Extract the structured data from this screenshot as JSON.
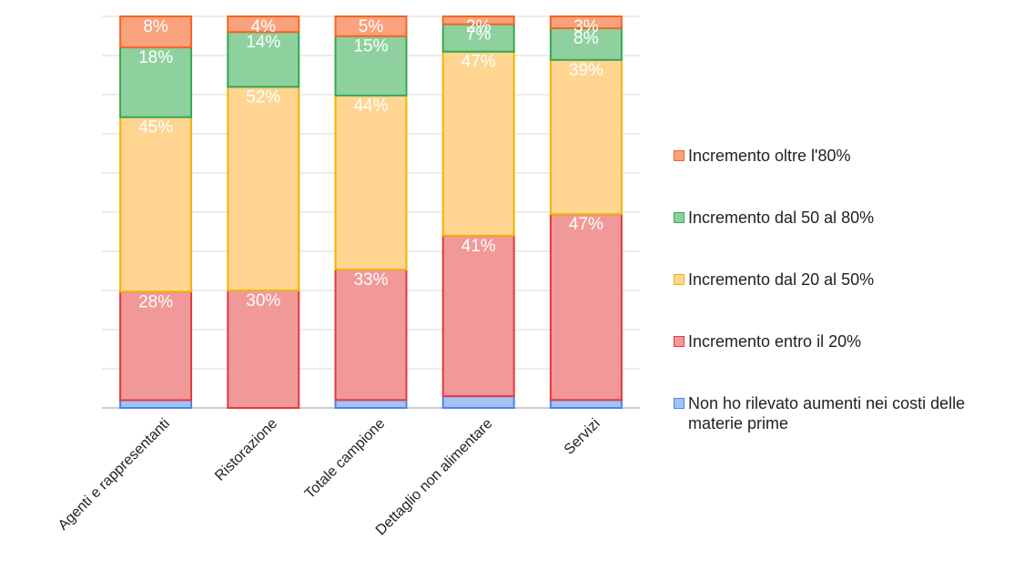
{
  "chart_data": {
    "type": "bar",
    "stacked": true,
    "orientation": "vertical",
    "categories": [
      "Agenti e rappresentanti",
      "Ristorazione",
      "Totale campione",
      "Dettaglio non alimentare",
      "Servizi"
    ],
    "series": [
      {
        "name": "Non ho rilevato aumenti nei costi delle materie prime",
        "values": [
          2,
          0,
          2,
          3,
          2
        ],
        "labels": [
          "",
          "",
          "",
          "",
          ""
        ],
        "fill": "#a4c2f4",
        "stroke": "#4a86e8"
      },
      {
        "name": "Incremento entro il 20%",
        "values": [
          28,
          30,
          33,
          41,
          47
        ],
        "labels": [
          "28%",
          "30%",
          "33%",
          "41%",
          "47%"
        ],
        "fill": "#f19999",
        "stroke": "#e0393e"
      },
      {
        "name": "Incremento dal 20 al 50%",
        "values": [
          45,
          52,
          44,
          47,
          39
        ],
        "labels": [
          "45%",
          "52%",
          "44%",
          "47%",
          "39%"
        ],
        "fill": "#ffd591",
        "stroke": "#f1b400"
      },
      {
        "name": "Incremento dal 50 al 80%",
        "values": [
          18,
          14,
          15,
          7,
          8
        ],
        "labels": [
          "18%",
          "14%",
          "15%",
          "7%",
          "8%"
        ],
        "fill": "#8fd19e",
        "stroke": "#34a853"
      },
      {
        "name": "Incremento oltre l'80%",
        "values": [
          8,
          4,
          5,
          2,
          3
        ],
        "labels": [
          "8%",
          "4%",
          "5%",
          "2%",
          "3%"
        ],
        "fill": "#f9a27d",
        "stroke": "#f46524"
      }
    ],
    "legend_order": [
      4,
      3,
      2,
      1,
      0
    ],
    "legend_position": "right",
    "ylim": [
      0,
      100
    ],
    "grid": true,
    "title": "",
    "xlabel": "",
    "ylabel": ""
  }
}
